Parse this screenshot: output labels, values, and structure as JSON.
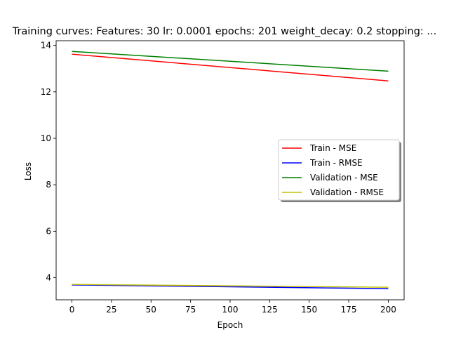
{
  "chart_data": {
    "type": "line",
    "title": "Training curves: Features: 30 lr: 0.0001 epochs: 201 weight_decay: 0.2 stopping: ...",
    "xlabel": "Epoch",
    "ylabel": "Loss",
    "xlim": [
      -10,
      210
    ],
    "ylim": [
      3.05,
      14.2
    ],
    "xticks": [
      0,
      25,
      50,
      75,
      100,
      125,
      150,
      175,
      200
    ],
    "yticks": [
      4,
      6,
      8,
      10,
      12,
      14
    ],
    "grid": false,
    "legend_position": "center-right",
    "series": [
      {
        "name": "Train - MSE",
        "color": "#ff0000",
        "x": [
          0,
          200
        ],
        "y": [
          13.62,
          12.47
        ]
      },
      {
        "name": "Train - RMSE",
        "color": "#0000ff",
        "x": [
          0,
          200
        ],
        "y": [
          3.69,
          3.53
        ]
      },
      {
        "name": "Validation - MSE",
        "color": "#008000",
        "x": [
          0,
          200
        ],
        "y": [
          13.74,
          12.89
        ]
      },
      {
        "name": "Validation - RMSE",
        "color": "#bfbf00",
        "x": [
          0,
          200
        ],
        "y": [
          3.71,
          3.59
        ]
      }
    ]
  }
}
